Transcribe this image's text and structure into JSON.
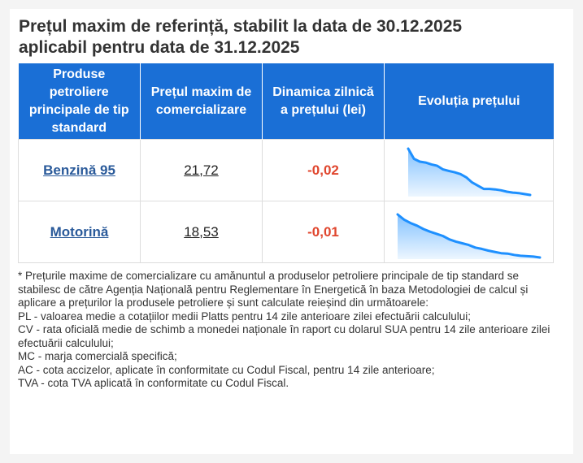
{
  "header": {
    "title_line1": "Prețul maxim de referință, stabilit la data de 30.12.2025",
    "title_line2": "aplicabil pentru data de 31.12.2025"
  },
  "table": {
    "columns": [
      "Produse petroliere principale de tip standard",
      "Prețul maxim de comercializare",
      "Dinamica zilnică a prețului (lei)",
      "Evoluția prețului"
    ],
    "rows": [
      {
        "product": "Benzină 95",
        "price": "21,72",
        "change": "-0,02",
        "trend": [
          1.0,
          0.78,
          0.72,
          0.7,
          0.66,
          0.63,
          0.55,
          0.52,
          0.49,
          0.45,
          0.38,
          0.27,
          0.2,
          0.13,
          0.13,
          0.12,
          0.1,
          0.07,
          0.05,
          0.04,
          0.02,
          0.0
        ]
      },
      {
        "product": "Motorină",
        "price": "18,53",
        "change": "-0,01",
        "trend": [
          1.0,
          0.88,
          0.8,
          0.74,
          0.66,
          0.6,
          0.55,
          0.5,
          0.42,
          0.37,
          0.33,
          0.29,
          0.23,
          0.2,
          0.16,
          0.13,
          0.1,
          0.09,
          0.06,
          0.04,
          0.03,
          0.02,
          0.0
        ]
      }
    ]
  },
  "notes": {
    "intro": "* Prețurile maxime de comercializare cu amănuntul a produselor petroliere principale de tip standard se stabilesc de către Agenția Națională pentru Reglementare în Energetică în baza Metodologiei de calcul și aplicare a prețurilor la produsele petroliere și sunt calculate reieșind din următoarele:",
    "pl": "PL - valoarea medie a cotațiilor medii Platts pentru 14 zile anterioare zilei efectuării calculului;",
    "cv": "CV - rata oficială medie de schimb a monedei naționale în raport cu dolarul SUA pentru 14 zile anterioare zilei efectuării calculului;",
    "mc": "MC - marja comercială specifică;",
    "ac": "AC - cota accizelor, aplicate în conformitate cu Codul Fiscal, pentru 14 zile anterioare;",
    "tva": "TVA - cota TVA aplicată în conformitate cu Codul Fiscal."
  },
  "colors": {
    "header_bg": "#1a6fd6",
    "line": "#1e90ff",
    "negative": "#e0462e",
    "link": "#2a5a9a"
  }
}
